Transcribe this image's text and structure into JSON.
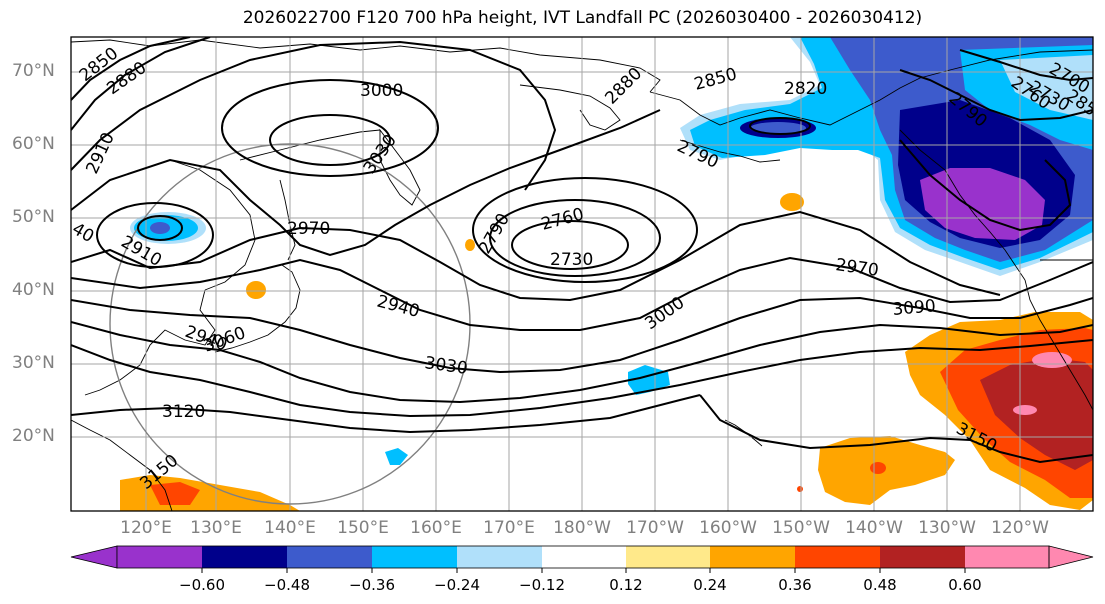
{
  "title": "2026022700 F120 700 hPa height, IVT Landfall PC (2026030400 - 2026030412)",
  "latitude_labels": [
    "70°N",
    "60°N",
    "50°N",
    "40°N",
    "30°N",
    "20°N"
  ],
  "longitude_labels": [
    "120°E",
    "130°E",
    "140°E",
    "150°E",
    "160°E",
    "170°E",
    "180°W",
    "170°W",
    "160°W",
    "150°W",
    "140°W",
    "130°W",
    "120°W"
  ],
  "contour_labels": [
    "2850",
    "2880",
    "3000",
    "2910",
    "3030",
    "2940",
    "2970",
    "2910",
    "2880",
    "2850",
    "2820",
    "2790",
    "2760",
    "2730",
    "2790",
    "2970",
    "3000",
    "3090",
    "2940",
    "3030",
    "3060",
    "3120",
    "3150",
    "2790",
    "2760",
    "2700",
    "2730",
    "2850",
    "3150",
    "40"
  ],
  "colorbar": {
    "tick_labels": [
      "−0.60",
      "−0.48",
      "−0.36",
      "−0.24",
      "−0.12",
      "0.12",
      "0.24",
      "0.36",
      "0.48",
      "0.60"
    ],
    "colors": [
      "#9932cc",
      "#00008b",
      "#3d5bcc",
      "#00bfff",
      "#b0e0fa",
      "#ffffff",
      "#ffe98a",
      "#ffa500",
      "#ff4500",
      "#b22222",
      "#ff88b0"
    ]
  }
}
